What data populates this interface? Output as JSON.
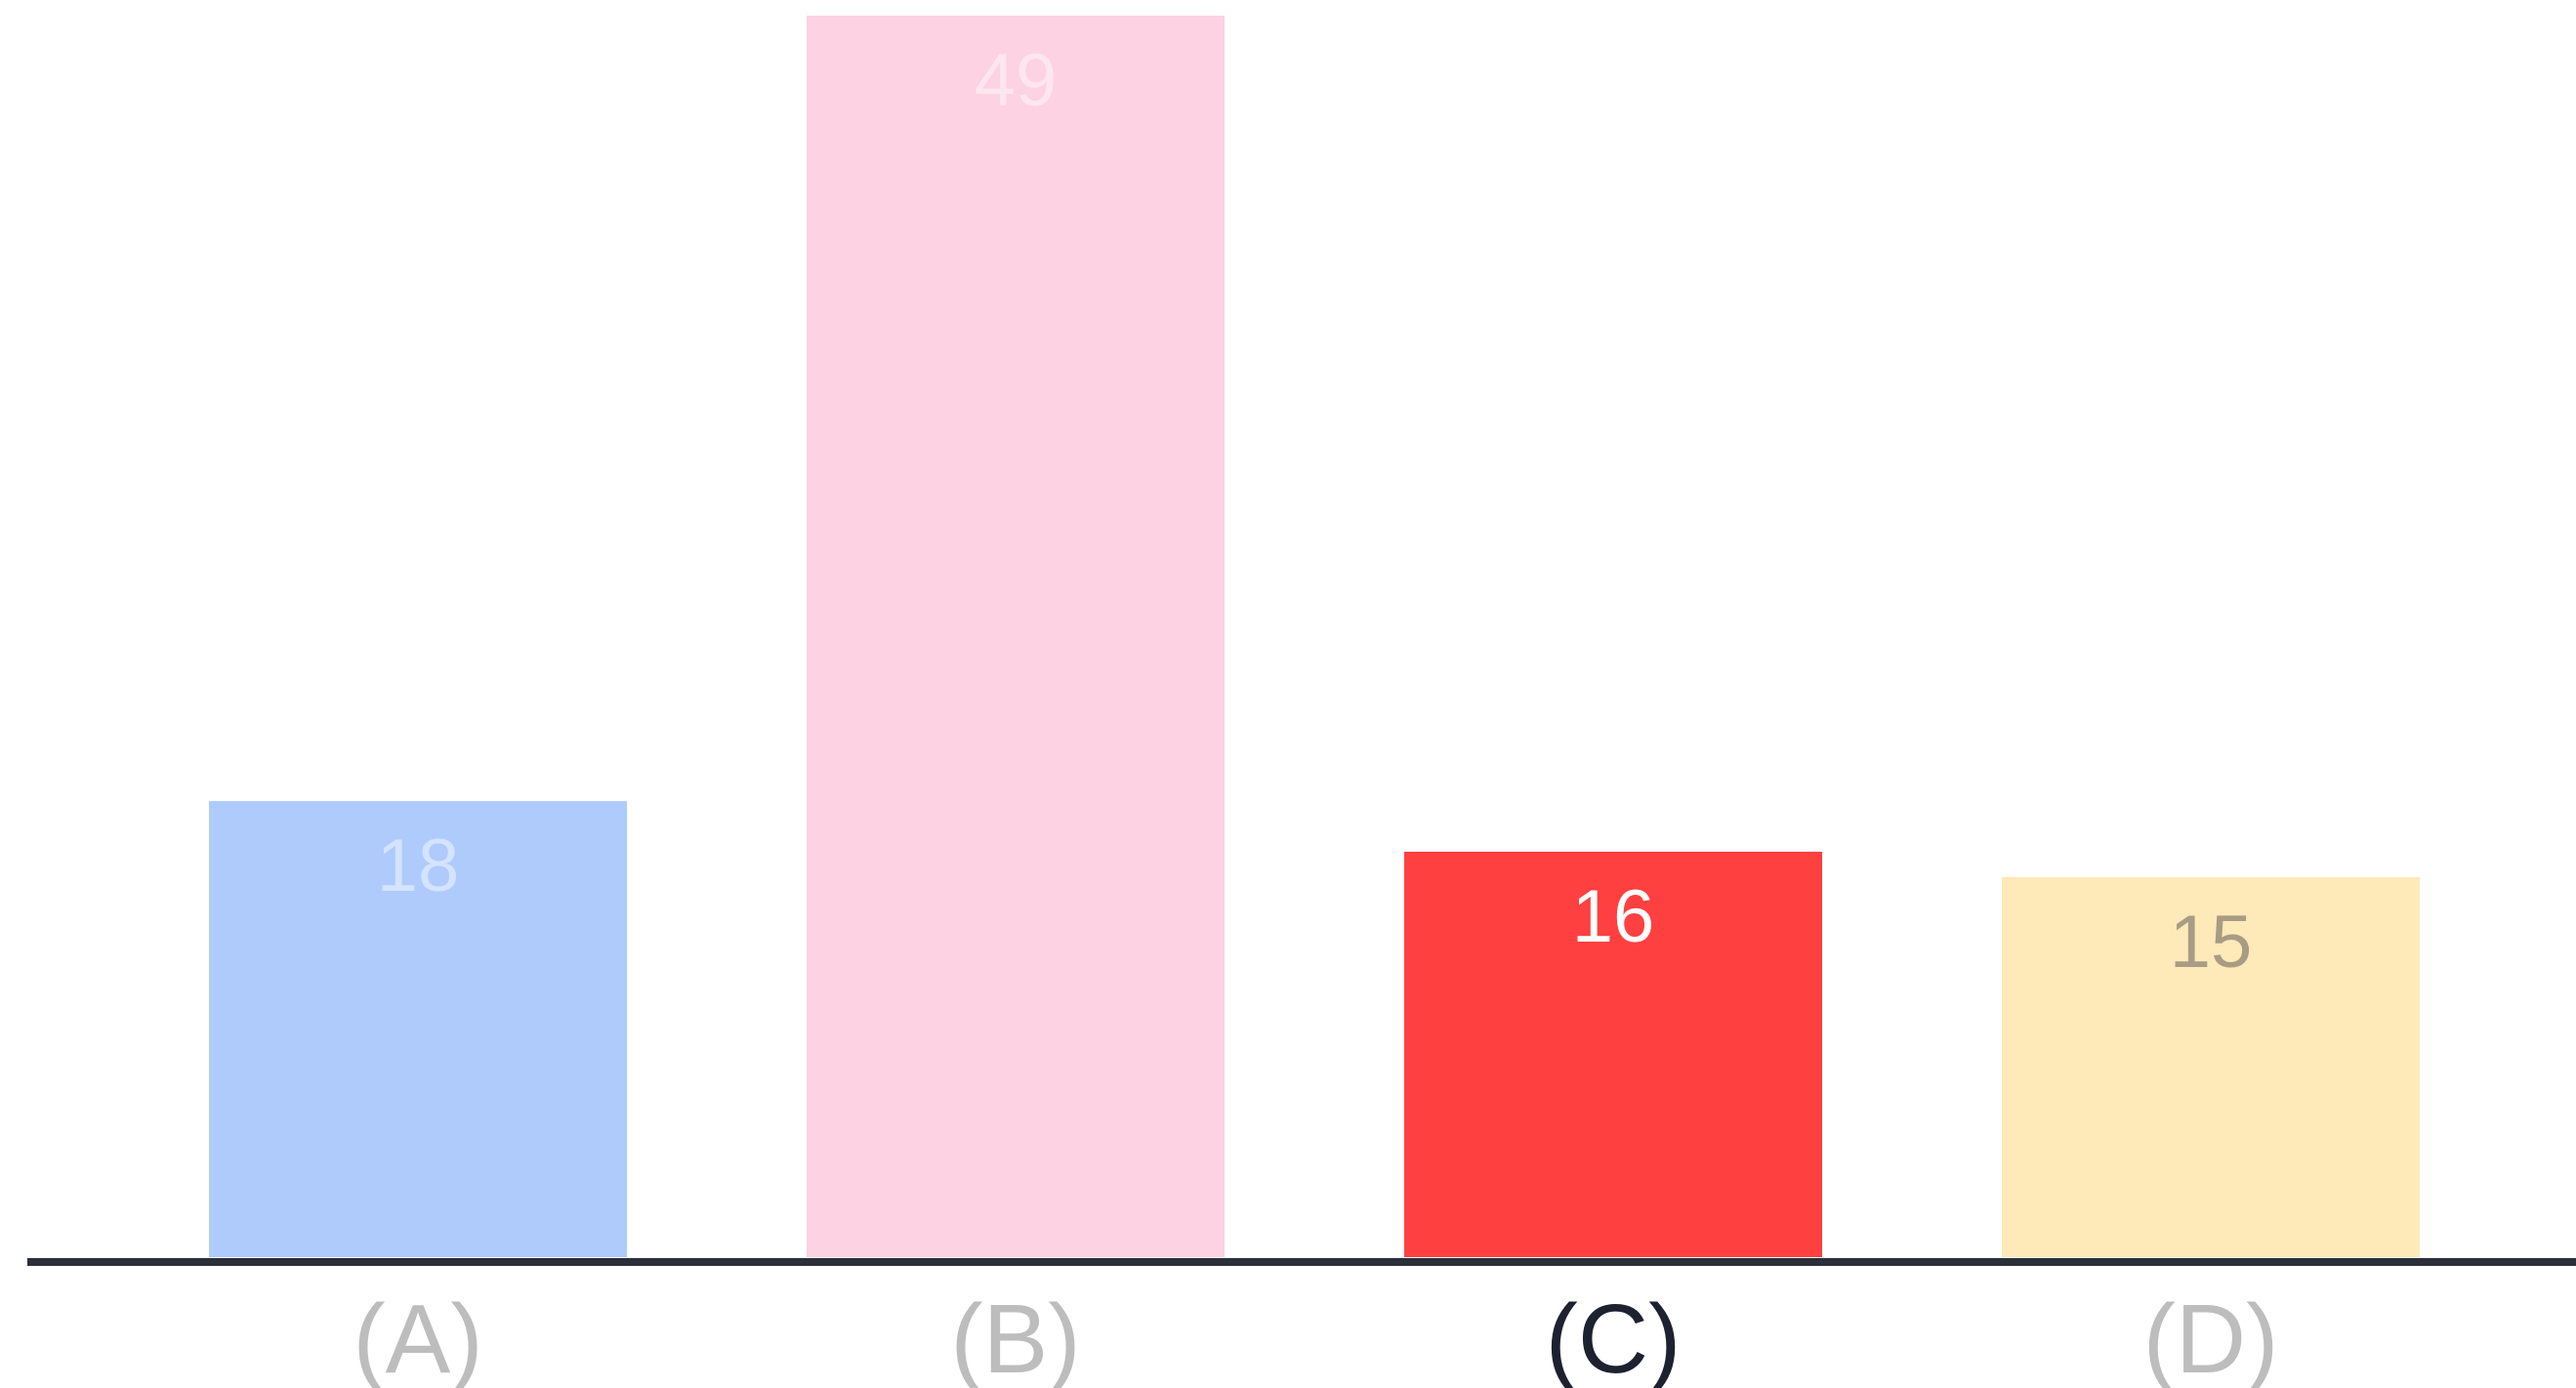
{
  "chart_data": {
    "type": "bar",
    "categories": [
      "(A)",
      "(B)",
      "(C)",
      "(D)"
    ],
    "values": [
      18,
      49,
      16,
      15
    ],
    "value_labels": [
      "18",
      "49",
      "16",
      "15"
    ],
    "bar_colors": [
      "#aecbfc",
      "#fdd2e2",
      "#ff4040",
      "#fee9b8"
    ],
    "value_label_colors": [
      "#d4e3fe",
      "#fee6ee",
      "#ffffff",
      "#a89c85"
    ],
    "tick_label_colors": [
      "#bdbdbd",
      "#bdbdbd",
      "#1d2130",
      "#bdbdbd"
    ],
    "highlighted_category": "(C)",
    "axis_color": "#2b2f3a",
    "ylim": [
      0,
      49
    ],
    "grid": false,
    "legend": "none",
    "title": "",
    "xlabel": "",
    "ylabel": ""
  }
}
